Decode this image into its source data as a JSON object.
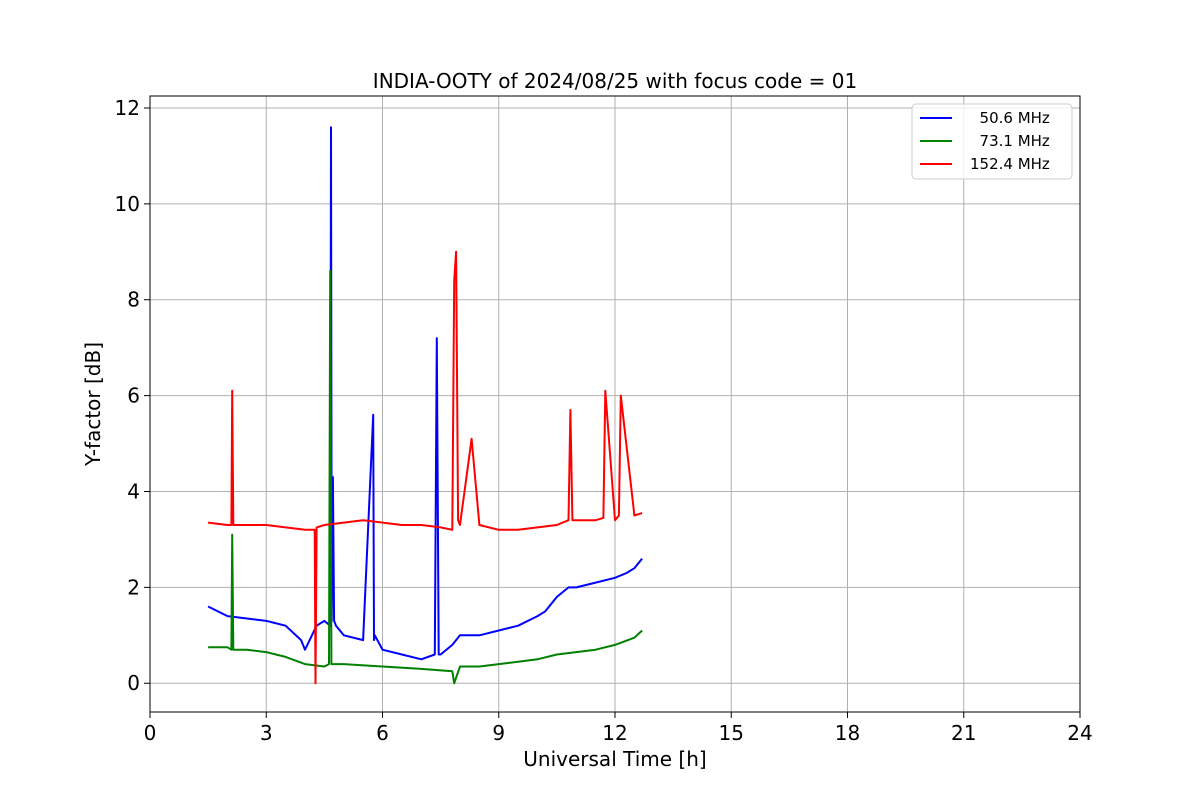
{
  "chart_data": {
    "type": "line",
    "title": "INDIA-OOTY of 2024/08/25 with focus code = 01",
    "xlabel": "Universal Time [h]",
    "ylabel": "Y-factor [dB]",
    "xlim": [
      0,
      24
    ],
    "ylim": [
      -0.6,
      12.25
    ],
    "xticks": [
      0,
      3,
      6,
      9,
      12,
      15,
      18,
      21,
      24
    ],
    "yticks": [
      0,
      2,
      4,
      6,
      8,
      10,
      12
    ],
    "grid": true,
    "legend_position": "top-right",
    "series": [
      {
        "name": "  50.6 MHz",
        "color": "#0000ff",
        "x": [
          1.5,
          2.0,
          2.5,
          3.0,
          3.5,
          3.9,
          4.0,
          4.3,
          4.5,
          4.65,
          4.67,
          4.69,
          4.72,
          4.75,
          4.8,
          5.0,
          5.5,
          5.76,
          5.78,
          5.8,
          6.0,
          6.5,
          7.0,
          7.35,
          7.4,
          7.45,
          7.5,
          7.8,
          8.0,
          8.5,
          9.0,
          9.5,
          10.0,
          10.2,
          10.5,
          10.8,
          11.0,
          11.5,
          12.0,
          12.3,
          12.5,
          12.7
        ],
        "y": [
          1.6,
          1.4,
          1.35,
          1.3,
          1.2,
          0.9,
          0.7,
          1.2,
          1.3,
          1.2,
          11.6,
          1.3,
          4.3,
          1.3,
          1.2,
          1.0,
          0.9,
          5.6,
          0.9,
          1.0,
          0.7,
          0.6,
          0.5,
          0.6,
          7.2,
          0.6,
          0.6,
          0.8,
          1.0,
          1.0,
          1.1,
          1.2,
          1.4,
          1.5,
          1.8,
          2.0,
          2.0,
          2.1,
          2.2,
          2.3,
          2.4,
          2.6
        ]
      },
      {
        "name": "  73.1 MHz",
        "color": "#008000",
        "x": [
          1.5,
          2.0,
          2.1,
          2.12,
          2.15,
          2.5,
          3.0,
          3.5,
          4.0,
          4.5,
          4.62,
          4.65,
          4.68,
          5.0,
          6.0,
          7.0,
          7.8,
          7.85,
          8.0,
          8.5,
          9.0,
          9.5,
          10.0,
          10.5,
          11.0,
          11.5,
          12.0,
          12.5,
          12.7
        ],
        "y": [
          0.75,
          0.75,
          0.7,
          3.1,
          0.7,
          0.7,
          0.65,
          0.55,
          0.4,
          0.35,
          0.4,
          8.6,
          0.4,
          0.4,
          0.35,
          0.3,
          0.25,
          0.0,
          0.35,
          0.35,
          0.4,
          0.45,
          0.5,
          0.6,
          0.65,
          0.7,
          0.8,
          0.95,
          1.1
        ]
      },
      {
        "name": "152.4 MHz",
        "color": "#ff0000",
        "x": [
          1.5,
          2.0,
          2.1,
          2.12,
          2.15,
          2.5,
          3.0,
          3.5,
          4.0,
          4.25,
          4.27,
          4.3,
          4.5,
          5.0,
          5.5,
          6.0,
          6.5,
          7.0,
          7.5,
          7.8,
          7.85,
          7.9,
          7.95,
          8.0,
          8.3,
          8.5,
          9.0,
          9.5,
          10.0,
          10.5,
          10.8,
          10.85,
          10.9,
          11.0,
          11.5,
          11.7,
          11.75,
          12.0,
          12.1,
          12.15,
          12.5,
          12.7
        ],
        "y": [
          3.35,
          3.3,
          3.3,
          6.1,
          3.3,
          3.3,
          3.3,
          3.25,
          3.2,
          3.2,
          0.0,
          3.25,
          3.3,
          3.35,
          3.4,
          3.35,
          3.3,
          3.3,
          3.25,
          3.2,
          8.4,
          9.0,
          3.4,
          3.3,
          5.1,
          3.3,
          3.2,
          3.2,
          3.25,
          3.3,
          3.4,
          5.7,
          3.4,
          3.4,
          3.4,
          3.45,
          6.1,
          3.4,
          3.5,
          6.0,
          3.5,
          3.55
        ]
      }
    ]
  }
}
